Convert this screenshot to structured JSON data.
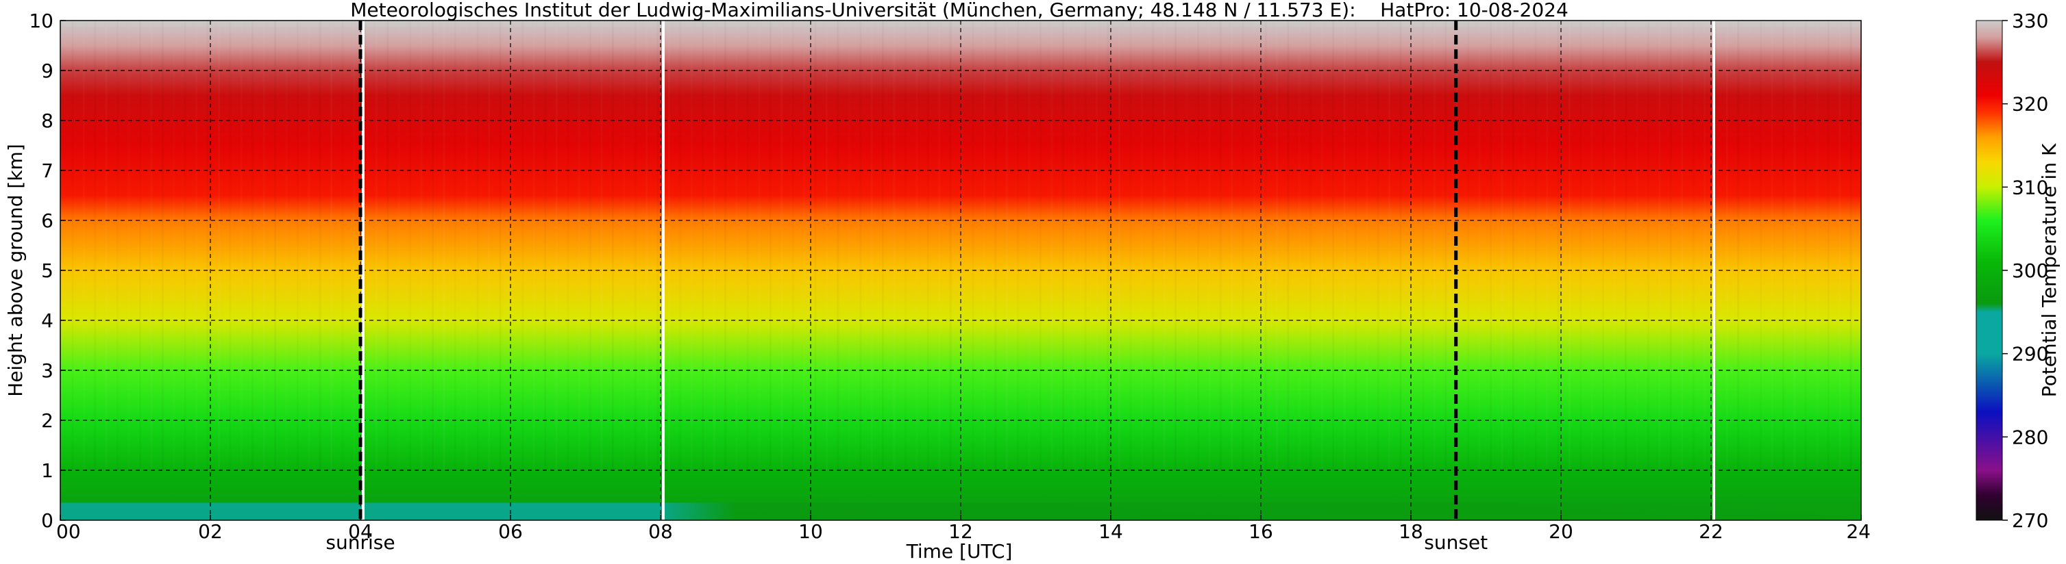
{
  "chart_data": {
    "type": "heatmap",
    "title": "Meteorologisches Institut der Ludwig-Maximilians-Universität (München, Germany; 48.148 N / 11.573 E):    HatPro: 10-08-2024",
    "xlabel": "Time [UTC]",
    "ylabel": "Height above ground [km]",
    "xlim": [
      0,
      24
    ],
    "ylim": [
      0,
      10
    ],
    "x_ticks": [
      "00",
      "02",
      "04",
      "06",
      "08",
      "10",
      "12",
      "14",
      "16",
      "18",
      "20",
      "22",
      "24"
    ],
    "y_ticks": [
      "0",
      "1",
      "2",
      "3",
      "4",
      "5",
      "6",
      "7",
      "8",
      "9",
      "10"
    ],
    "grid": true,
    "colorbar": {
      "label": "Potential Temperature in K",
      "range": [
        270,
        330
      ],
      "ticks": [
        "270",
        "280",
        "290",
        "300",
        "310",
        "320",
        "330"
      ],
      "colors": [
        {
          "k": 270,
          "color": "#111111"
        },
        {
          "k": 273,
          "color": "#300030"
        },
        {
          "k": 276,
          "color": "#8a108a"
        },
        {
          "k": 283,
          "color": "#0b10c0"
        },
        {
          "k": 290,
          "color": "#0aa8a0"
        },
        {
          "k": 295,
          "color": "#0aa8a0"
        },
        {
          "k": 296,
          "color": "#0a9a10"
        },
        {
          "k": 301,
          "color": "#08b808"
        },
        {
          "k": 306,
          "color": "#1ef01e"
        },
        {
          "k": 310,
          "color": "#c8f000"
        },
        {
          "k": 313,
          "color": "#f8d800"
        },
        {
          "k": 316,
          "color": "#ffa000"
        },
        {
          "k": 319,
          "color": "#ff3000"
        },
        {
          "k": 321,
          "color": "#ee0000"
        },
        {
          "k": 325,
          "color": "#c01010"
        },
        {
          "k": 328,
          "color": "#d4a0a0"
        },
        {
          "k": 330,
          "color": "#cccccc"
        }
      ]
    },
    "profile": [
      {
        "h": 0.0,
        "k": 296
      },
      {
        "h": 0.5,
        "k": 298
      },
      {
        "h": 1.0,
        "k": 300
      },
      {
        "h": 2.0,
        "k": 304
      },
      {
        "h": 3.0,
        "k": 307
      },
      {
        "h": 4.0,
        "k": 311
      },
      {
        "h": 5.0,
        "k": 314
      },
      {
        "h": 6.0,
        "k": 317
      },
      {
        "h": 6.5,
        "k": 320
      },
      {
        "h": 7.5,
        "k": 322
      },
      {
        "h": 8.5,
        "k": 324
      },
      {
        "h": 9.0,
        "k": 326
      },
      {
        "h": 9.5,
        "k": 328
      },
      {
        "h": 10.0,
        "k": 330
      }
    ],
    "surface_layer": [
      {
        "t": 0,
        "k": 294
      },
      {
        "t": 4,
        "k": 293
      },
      {
        "t": 6,
        "k": 291
      },
      {
        "t": 8,
        "k": 293
      },
      {
        "t": 9,
        "k": 296
      },
      {
        "t": 24,
        "k": 297
      }
    ],
    "gaps_utc": [
      4.0,
      8.0,
      22.0
    ],
    "sun_events": [
      {
        "label": "sunrise",
        "time_utc": 4.0
      },
      {
        "label": "sunset",
        "time_utc": 18.6
      }
    ]
  }
}
